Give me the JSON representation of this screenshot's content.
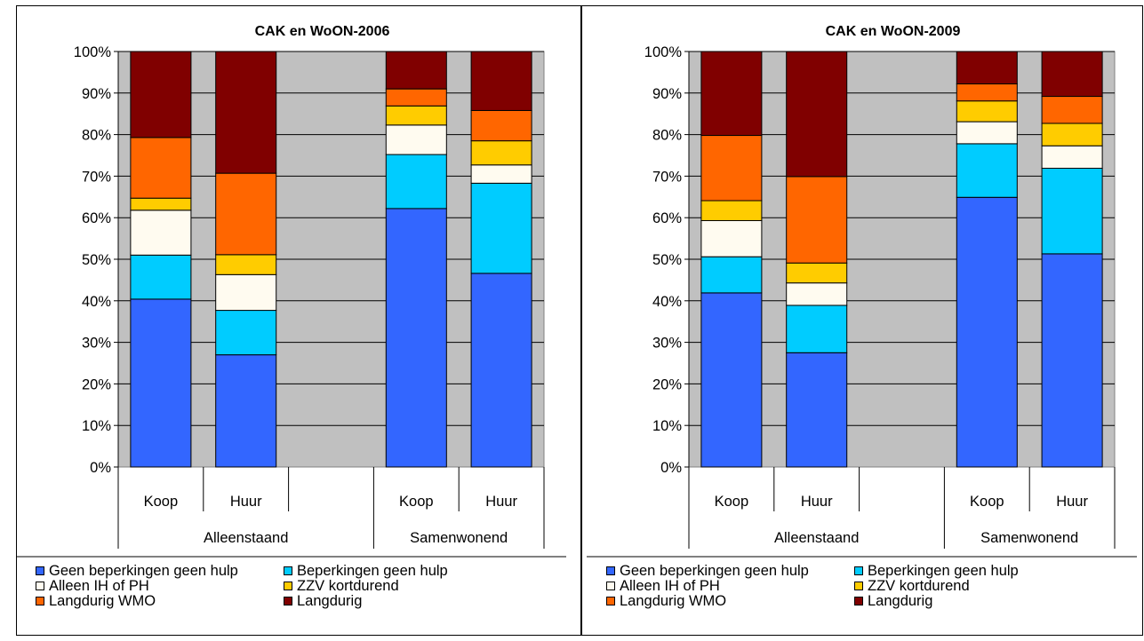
{
  "chart_data": [
    {
      "type": "bar",
      "stacked": true,
      "normalized": true,
      "title": "CAK en WoON-2006",
      "xlabel": "",
      "ylabel": "",
      "ylim": [
        0,
        100
      ],
      "yticks": [
        "0%",
        "10%",
        "20%",
        "30%",
        "40%",
        "50%",
        "60%",
        "70%",
        "80%",
        "90%",
        "100%"
      ],
      "categories": [
        "Koop",
        "Huur",
        "",
        "Koop",
        "Huur"
      ],
      "groups": [
        {
          "label": "Alleenstaand",
          "span": [
            0,
            2
          ]
        },
        {
          "label": "Samenwonend",
          "span": [
            3,
            4
          ]
        }
      ],
      "grid": true,
      "legend_position": "bottom",
      "series": [
        {
          "name": "Geen beperkingen geen hulp",
          "color": "#3366ff",
          "values": [
            40.4,
            27.0,
            null,
            62.2,
            46.6
          ]
        },
        {
          "name": "Beperkingen geen hulp",
          "color": "#00ccff",
          "values": [
            10.6,
            10.7,
            null,
            13.0,
            21.7
          ]
        },
        {
          "name": "Alleen IH of PH",
          "color": "#fffbf0",
          "values": [
            10.8,
            8.6,
            null,
            7.1,
            4.4
          ]
        },
        {
          "name": "ZZV kortdurend",
          "color": "#ffcc00",
          "values": [
            2.9,
            4.8,
            null,
            4.6,
            5.8
          ]
        },
        {
          "name": "Langdurig WMO",
          "color": "#ff6600",
          "values": [
            14.6,
            19.6,
            null,
            4.1,
            7.3
          ]
        },
        {
          "name": "Langdurig",
          "color": "#800000",
          "values": [
            20.7,
            29.3,
            null,
            9.0,
            14.2
          ]
        }
      ]
    },
    {
      "type": "bar",
      "stacked": true,
      "normalized": true,
      "title": "CAK en WoON-2009",
      "xlabel": "",
      "ylabel": "",
      "ylim": [
        0,
        100
      ],
      "yticks": [
        "0%",
        "10%",
        "20%",
        "30%",
        "40%",
        "50%",
        "60%",
        "70%",
        "80%",
        "90%",
        "100%"
      ],
      "categories": [
        "Koop",
        "Huur",
        "",
        "Koop",
        "Huur"
      ],
      "groups": [
        {
          "label": "Alleenstaand",
          "span": [
            0,
            2
          ]
        },
        {
          "label": "Samenwonend",
          "span": [
            3,
            4
          ]
        }
      ],
      "grid": true,
      "legend_position": "bottom",
      "series": [
        {
          "name": "Geen beperkingen geen hulp",
          "color": "#3366ff",
          "values": [
            41.9,
            27.5,
            null,
            64.9,
            51.3
          ]
        },
        {
          "name": "Beperkingen geen hulp",
          "color": "#00ccff",
          "values": [
            8.7,
            11.4,
            null,
            12.9,
            20.6
          ]
        },
        {
          "name": "Alleen IH of PH",
          "color": "#fffbf0",
          "values": [
            8.7,
            5.4,
            null,
            5.3,
            5.4
          ]
        },
        {
          "name": "ZZV kortdurend",
          "color": "#ffcc00",
          "values": [
            4.8,
            4.8,
            null,
            5.0,
            5.4
          ]
        },
        {
          "name": "Langdurig WMO",
          "color": "#ff6600",
          "values": [
            15.7,
            20.8,
            null,
            4.1,
            6.5
          ]
        },
        {
          "name": "Langdurig",
          "color": "#800000",
          "values": [
            20.2,
            30.1,
            null,
            7.8,
            10.8
          ]
        }
      ]
    }
  ]
}
